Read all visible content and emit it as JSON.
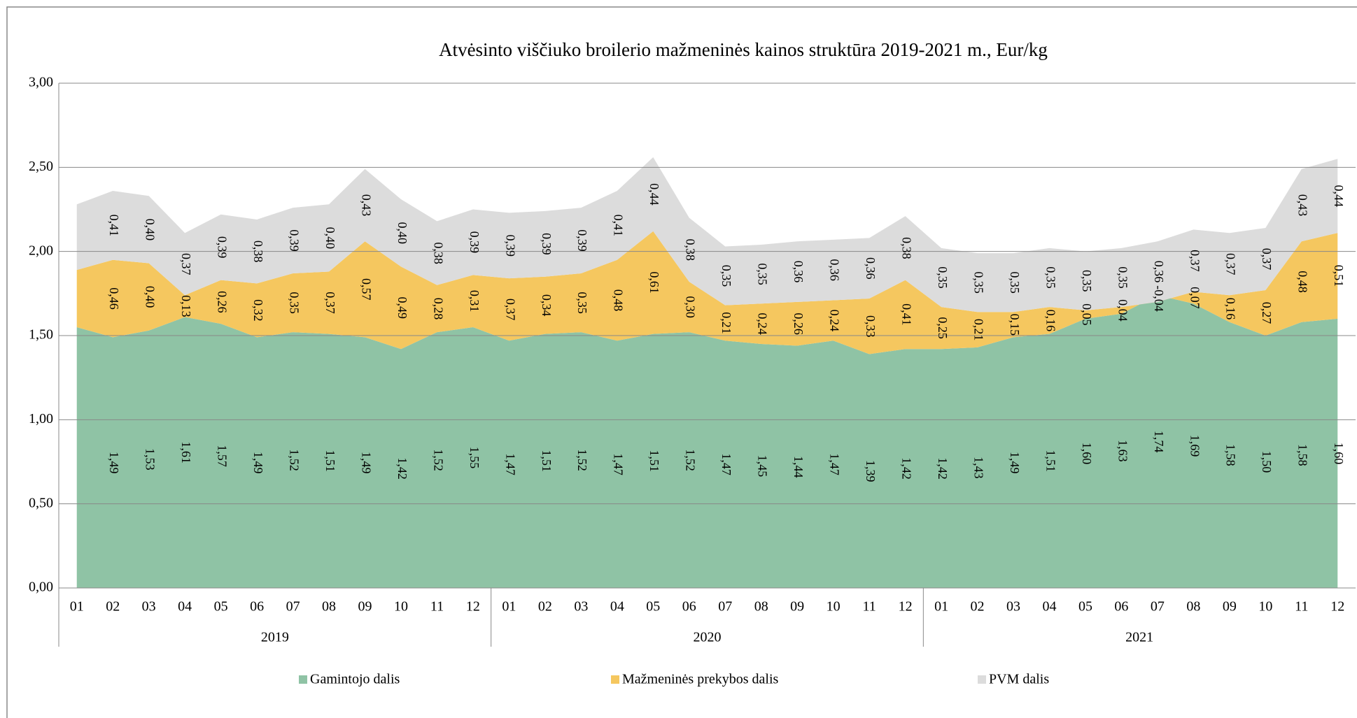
{
  "chart_data": {
    "type": "stacked_area",
    "title": "Atvėsinto viščiuko broilerio mažmeninės kainos struktūra 2019-2021 m., Eur/kg",
    "categories": [
      "01",
      "02",
      "03",
      "04",
      "05",
      "06",
      "07",
      "08",
      "09",
      "10",
      "11",
      "12",
      "01",
      "02",
      "03",
      "04",
      "05",
      "06",
      "07",
      "08",
      "09",
      "10",
      "11",
      "12",
      "01",
      "02",
      "03",
      "04",
      "05",
      "06",
      "07",
      "08",
      "09",
      "10",
      "11",
      "12"
    ],
    "groups": [
      "2019",
      "2020",
      "2021"
    ],
    "series": [
      {
        "name": "Gamintojo dalis",
        "color": "#8fc3a5",
        "values": [
          1.55,
          1.49,
          1.53,
          1.61,
          1.57,
          1.49,
          1.52,
          1.51,
          1.49,
          1.42,
          1.52,
          1.55,
          1.47,
          1.51,
          1.52,
          1.47,
          1.51,
          1.52,
          1.47,
          1.45,
          1.44,
          1.47,
          1.39,
          1.42,
          1.42,
          1.43,
          1.49,
          1.51,
          1.6,
          1.63,
          1.74,
          1.69,
          1.58,
          1.5,
          1.58,
          1.6
        ],
        "value_labels": [
          null,
          "1,49",
          "1,53",
          "1,61",
          "1,57",
          "1,49",
          "1,52",
          "1,51",
          "1,49",
          "1,42",
          "1,52",
          "1,55",
          "1,47",
          "1,51",
          "1,52",
          "1,47",
          "1,51",
          "1,52",
          "1,47",
          "1,45",
          "1,44",
          "1,47",
          "1,39",
          "1,42",
          "1,42",
          "1,43",
          "1,49",
          "1,51",
          "1,60",
          "1,63",
          "1,74",
          "1,69",
          "1,58",
          "1,50",
          "1,58",
          "1,60"
        ]
      },
      {
        "name": "Mažmeninės prekybos dalis",
        "color": "#f5c75f",
        "values": [
          0.34,
          0.46,
          0.4,
          0.13,
          0.26,
          0.32,
          0.35,
          0.37,
          0.57,
          0.49,
          0.28,
          0.31,
          0.37,
          0.34,
          0.35,
          0.48,
          0.61,
          0.3,
          0.21,
          0.24,
          0.26,
          0.24,
          0.33,
          0.41,
          0.25,
          0.21,
          0.15,
          0.16,
          0.05,
          0.04,
          -0.04,
          0.07,
          0.16,
          0.27,
          0.48,
          0.51
        ],
        "value_labels": [
          null,
          "0,46",
          "0,40",
          "0,13",
          "0,26",
          "0,32",
          "0,35",
          "0,37",
          "0,57",
          "0,49",
          "0,28",
          "0,31",
          "0,37",
          "0,34",
          "0,35",
          "0,48",
          "0,61",
          "0,30",
          "0,21",
          "0,24",
          "0,26",
          "0,24",
          "0,33",
          "0,41",
          "0,25",
          "0,21",
          "0,15",
          "0,16",
          "0,05",
          "0,04",
          "-0,04",
          "0,07",
          "0,16",
          "0,27",
          "0,48",
          "0,51"
        ]
      },
      {
        "name": "PVM dalis",
        "color": "#dcdcdc",
        "values": [
          0.39,
          0.41,
          0.4,
          0.37,
          0.39,
          0.38,
          0.39,
          0.4,
          0.43,
          0.4,
          0.38,
          0.39,
          0.39,
          0.39,
          0.39,
          0.41,
          0.44,
          0.38,
          0.35,
          0.35,
          0.36,
          0.36,
          0.36,
          0.38,
          0.35,
          0.35,
          0.35,
          0.35,
          0.35,
          0.35,
          0.36,
          0.37,
          0.37,
          0.37,
          0.43,
          0.44
        ],
        "value_labels": [
          null,
          "0,41",
          "0,40",
          "0,37",
          "0,39",
          "0,38",
          "0,39",
          "0,40",
          "0,43",
          "0,40",
          "0,38",
          "0,39",
          "0,39",
          "0,39",
          "0,39",
          "0,41",
          "0,44",
          "0,38",
          "0,35",
          "0,35",
          "0,36",
          "0,36",
          "0,36",
          "0,38",
          "0,35",
          "0,35",
          "0,35",
          "0,35",
          "0,35",
          "0,35",
          "0,36",
          "0,37",
          "0,37",
          "0,37",
          "0,43",
          "0,44"
        ]
      }
    ],
    "ylim": [
      0,
      3
    ],
    "yticks": [
      {
        "value": 0,
        "label": "0,00"
      },
      {
        "value": 0.5,
        "label": "0,50"
      },
      {
        "value": 1,
        "label": "1,00"
      },
      {
        "value": 1.5,
        "label": "1,50"
      },
      {
        "value": 2,
        "label": "2,00"
      },
      {
        "value": 2.5,
        "label": "2,50"
      },
      {
        "value": 3,
        "label": "3,00"
      }
    ],
    "grid": true,
    "legend": "bottom"
  }
}
